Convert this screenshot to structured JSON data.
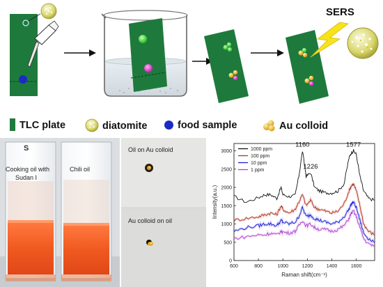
{
  "workflow": {
    "sers_label": "SERS",
    "glyphs": {
      "diatomite": "diatomite-sphere-icon",
      "lightning": "lightning-bolt-icon",
      "beaker": "beaker-icon",
      "pipette": "pipette-icon"
    }
  },
  "legend": {
    "items": [
      {
        "label": "TLC plate",
        "icon": "green-rectangle-icon",
        "color": "#1e7a3c"
      },
      {
        "label": "diatomite",
        "icon": "diatomite-sphere-icon",
        "color": "#c8c64a"
      },
      {
        "label": "food sample",
        "icon": "blue-dot-icon",
        "color": "#1a2bc4"
      },
      {
        "label": "Au colloid",
        "icon": "au-colloid-cluster-icon",
        "color": "#e8c020"
      }
    ]
  },
  "photos": {
    "cuvettes": {
      "label_left_1": "Cooking oil with",
      "label_left_2": "Sudan I",
      "label_right": "Chili oil",
      "cuvette_mark": "S"
    },
    "droplets": {
      "label_top": "Oil on Au colloid",
      "label_bottom": "Au colloid on oil"
    }
  },
  "chart_data": {
    "type": "line",
    "xlabel": "Raman shift(cm⁻¹)",
    "ylabel": "Intensity(a.u.)",
    "xlim": [
      600,
      1750
    ],
    "ylim": [
      0,
      3200
    ],
    "xticks": [
      600,
      800,
      1000,
      1200,
      1400,
      1600
    ],
    "yticks": [
      0,
      500,
      1000,
      1500,
      2000,
      2500,
      3000
    ],
    "peak_labels": [
      {
        "text": "1160",
        "x": 1160,
        "y": 3000
      },
      {
        "text": "1226",
        "x": 1226,
        "y": 2400
      },
      {
        "text": "1577",
        "x": 1577,
        "y": 3000
      }
    ],
    "legend_position": "top-left",
    "series": [
      {
        "name": "1000 ppm",
        "color": "#111111",
        "peaks": [
          [
            1160,
            1500
          ],
          [
            1226,
            900
          ],
          [
            1577,
            1450
          ]
        ],
        "values": [
          [
            600,
            1750
          ],
          [
            700,
            1600
          ],
          [
            800,
            1720
          ],
          [
            850,
            1800
          ],
          [
            900,
            1800
          ],
          [
            950,
            1700
          ],
          [
            985,
            2000
          ],
          [
            1000,
            1800
          ],
          [
            1050,
            1750
          ],
          [
            1100,
            1780
          ],
          [
            1130,
            2300
          ],
          [
            1160,
            3000
          ],
          [
            1190,
            2300
          ],
          [
            1226,
            2400
          ],
          [
            1260,
            2000
          ],
          [
            1300,
            1900
          ],
          [
            1350,
            1850
          ],
          [
            1400,
            1850
          ],
          [
            1450,
            1900
          ],
          [
            1500,
            2100
          ],
          [
            1540,
            2800
          ],
          [
            1560,
            2950
          ],
          [
            1577,
            3000
          ],
          [
            1600,
            2900
          ],
          [
            1630,
            2300
          ],
          [
            1660,
            1900
          ],
          [
            1700,
            1700
          ],
          [
            1750,
            1650
          ]
        ]
      },
      {
        "name": "100 ppm",
        "color": "#b03020",
        "peaks": [
          [
            1160,
            900
          ],
          [
            1577,
            800
          ]
        ],
        "values": [
          [
            600,
            1100
          ],
          [
            700,
            1150
          ],
          [
            800,
            1200
          ],
          [
            850,
            1250
          ],
          [
            900,
            1300
          ],
          [
            950,
            1250
          ],
          [
            985,
            1500
          ],
          [
            1000,
            1400
          ],
          [
            1050,
            1300
          ],
          [
            1100,
            1400
          ],
          [
            1130,
            1600
          ],
          [
            1160,
            1800
          ],
          [
            1190,
            1500
          ],
          [
            1226,
            1650
          ],
          [
            1260,
            1450
          ],
          [
            1300,
            1400
          ],
          [
            1350,
            1350
          ],
          [
            1400,
            1300
          ],
          [
            1450,
            1350
          ],
          [
            1500,
            1550
          ],
          [
            1540,
            1900
          ],
          [
            1560,
            2050
          ],
          [
            1577,
            2100
          ],
          [
            1600,
            1900
          ],
          [
            1630,
            1500
          ],
          [
            1660,
            1000
          ],
          [
            1700,
            800
          ],
          [
            1750,
            700
          ]
        ]
      },
      {
        "name": "10 ppm",
        "color": "#1a1ad8",
        "peaks": [
          [
            1160,
            600
          ],
          [
            1577,
            600
          ]
        ],
        "values": [
          [
            600,
            800
          ],
          [
            700,
            900
          ],
          [
            800,
            950
          ],
          [
            850,
            1000
          ],
          [
            900,
            1000
          ],
          [
            950,
            950
          ],
          [
            985,
            1100
          ],
          [
            1000,
            1050
          ],
          [
            1050,
            1000
          ],
          [
            1100,
            1050
          ],
          [
            1130,
            1200
          ],
          [
            1160,
            1450
          ],
          [
            1190,
            1200
          ],
          [
            1226,
            1250
          ],
          [
            1260,
            1150
          ],
          [
            1300,
            1100
          ],
          [
            1350,
            1050
          ],
          [
            1400,
            1000
          ],
          [
            1450,
            1050
          ],
          [
            1500,
            1200
          ],
          [
            1540,
            1400
          ],
          [
            1560,
            1550
          ],
          [
            1577,
            1600
          ],
          [
            1600,
            1450
          ],
          [
            1630,
            1100
          ],
          [
            1660,
            750
          ],
          [
            1700,
            600
          ],
          [
            1750,
            500
          ]
        ]
      },
      {
        "name": "1 ppm",
        "color": "#b040d0",
        "peaks": [
          [
            1160,
            450
          ],
          [
            1577,
            550
          ]
        ],
        "values": [
          [
            600,
            600
          ],
          [
            700,
            650
          ],
          [
            800,
            700
          ],
          [
            850,
            700
          ],
          [
            900,
            750
          ],
          [
            950,
            700
          ],
          [
            985,
            800
          ],
          [
            1000,
            780
          ],
          [
            1050,
            750
          ],
          [
            1100,
            800
          ],
          [
            1130,
            950
          ],
          [
            1160,
            1100
          ],
          [
            1190,
            950
          ],
          [
            1226,
            1000
          ],
          [
            1260,
            900
          ],
          [
            1300,
            850
          ],
          [
            1350,
            850
          ],
          [
            1400,
            800
          ],
          [
            1450,
            850
          ],
          [
            1500,
            950
          ],
          [
            1540,
            1150
          ],
          [
            1560,
            1300
          ],
          [
            1577,
            1350
          ],
          [
            1600,
            1200
          ],
          [
            1630,
            900
          ],
          [
            1660,
            600
          ],
          [
            1700,
            450
          ],
          [
            1750,
            400
          ]
        ]
      }
    ]
  }
}
